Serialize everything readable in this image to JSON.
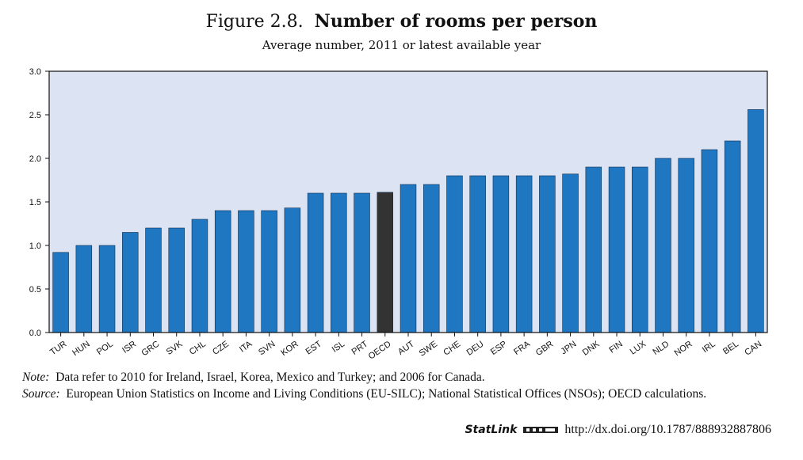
{
  "header": {
    "figure_number": "Figure 2.8.",
    "figure_title": "Number of rooms per person",
    "subtitle": "Average number, 2011 or latest available year"
  },
  "notes": {
    "note_label": "Note:",
    "note_text": "Data refer to 2010 for Ireland, Israel, Korea, Mexico and Turkey; and 2006 for Canada.",
    "source_label": "Source:",
    "source_text": "European Union Statistics on Income and Living Conditions (EU-SILC); National Statistical Offices (NSOs); OECD calculations."
  },
  "statlink": {
    "brand": "StatLink",
    "url": "http://dx.doi.org/10.1787/888932887806"
  },
  "colors": {
    "bar": "#1f77c2",
    "highlight_bar": "#333333",
    "plot_background": "#dce3f2",
    "bar_outline": "#0d2f4f"
  },
  "chart_data": {
    "type": "bar",
    "title": "Number of rooms per person",
    "subtitle": "Average number, 2011 or latest available year",
    "xlabel": "",
    "ylabel": "",
    "ylim": [
      0,
      3
    ],
    "yticks": [
      0.0,
      0.5,
      1.0,
      1.5,
      2.0,
      2.5,
      3.0
    ],
    "ytick_labels": [
      "0.0",
      "0.5",
      "1.0",
      "1.5",
      "2.0",
      "2.5",
      "3.0"
    ],
    "grid": false,
    "highlight": "OECD",
    "categories": [
      "TUR",
      "HUN",
      "POL",
      "ISR",
      "GRC",
      "SVK",
      "CHL",
      "CZE",
      "ITA",
      "SVN",
      "KOR",
      "EST",
      "ISL",
      "PRT",
      "OECD",
      "AUT",
      "SWE",
      "CHE",
      "DEU",
      "ESP",
      "FRA",
      "GBR",
      "JPN",
      "DNK",
      "FIN",
      "LUX",
      "NLD",
      "NOR",
      "IRL",
      "BEL",
      "CAN"
    ],
    "values": [
      0.92,
      1.0,
      1.0,
      1.15,
      1.2,
      1.2,
      1.3,
      1.4,
      1.4,
      1.4,
      1.43,
      1.6,
      1.6,
      1.6,
      1.61,
      1.7,
      1.7,
      1.8,
      1.8,
      1.8,
      1.8,
      1.8,
      1.82,
      1.9,
      1.9,
      1.9,
      2.0,
      2.0,
      2.1,
      2.2,
      2.56
    ]
  }
}
